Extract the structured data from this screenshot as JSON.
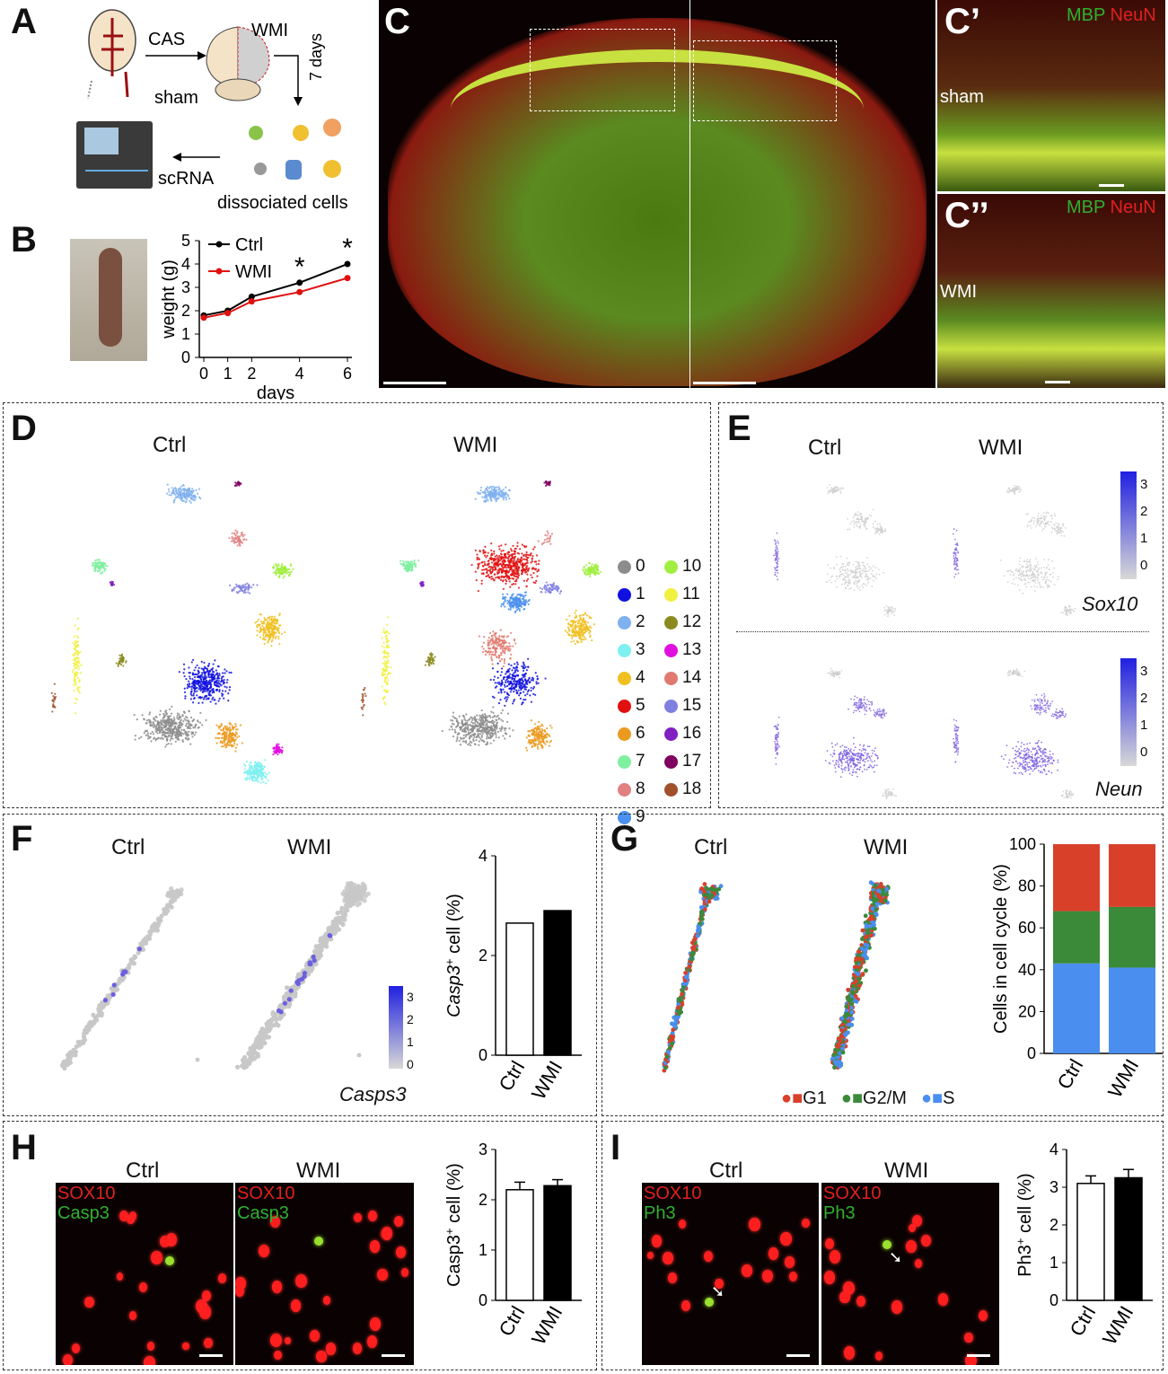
{
  "panels": {
    "A": {
      "label": "A",
      "cas": "CAS",
      "wmi": "WMI",
      "sham": "sham",
      "days": "7 days",
      "scrna": "scRNA",
      "dissociated": "dissociated cells"
    },
    "B": {
      "label": "B"
    },
    "C": {
      "label": "C",
      "c1_label": "C’",
      "c2_label": "C’’",
      "c1_tag": "sham",
      "c2_tag": "WMI",
      "stain_mbp": "MBP",
      "stain_neun": "NeuN"
    },
    "D": {
      "label": "D",
      "ctrl": "Ctrl",
      "wmi": "WMI",
      "clusters": [
        {
          "id": "0",
          "color": "#8c8c8c"
        },
        {
          "id": "1",
          "color": "#1010e0"
        },
        {
          "id": "2",
          "color": "#7fb0ef"
        },
        {
          "id": "3",
          "color": "#7ef0f0"
        },
        {
          "id": "4",
          "color": "#f0c020"
        },
        {
          "id": "5",
          "color": "#e01010"
        },
        {
          "id": "6",
          "color": "#eb9a20"
        },
        {
          "id": "7",
          "color": "#7ff0a0"
        },
        {
          "id": "8",
          "color": "#e08080"
        },
        {
          "id": "9",
          "color": "#4a90ef"
        },
        {
          "id": "10",
          "color": "#a0ef40"
        },
        {
          "id": "11",
          "color": "#f0f040"
        },
        {
          "id": "12",
          "color": "#8a8a20"
        },
        {
          "id": "13",
          "color": "#e010e0"
        },
        {
          "id": "14",
          "color": "#e07a70"
        },
        {
          "id": "15",
          "color": "#8080e0"
        },
        {
          "id": "16",
          "color": "#8020c0"
        },
        {
          "id": "17",
          "color": "#800060"
        },
        {
          "id": "18",
          "color": "#a0502a"
        }
      ]
    },
    "E": {
      "label": "E",
      "ctrl": "Ctrl",
      "wmi": "WMI",
      "gene1": "Sox10",
      "gene2": "Neun",
      "scale": [
        "3",
        "2",
        "1",
        "0"
      ]
    },
    "F": {
      "label": "F",
      "ctrl": "Ctrl",
      "wmi": "WMI",
      "gene": "Casps3",
      "scale": [
        "3",
        "2",
        "1",
        "0"
      ]
    },
    "G": {
      "label": "G",
      "ctrl": "Ctrl",
      "wmi": "WMI",
      "legend": [
        "G1",
        "G2/M",
        "S"
      ]
    },
    "H": {
      "label": "H",
      "ctrl": "Ctrl",
      "wmi": "WMI",
      "stain1": "SOX10",
      "stain2": "Casp3"
    },
    "I": {
      "label": "I",
      "ctrl": "Ctrl",
      "wmi": "WMI",
      "stain1": "SOX10",
      "stain2": "Ph3"
    }
  },
  "chart_data": [
    {
      "panel": "B",
      "type": "line",
      "xlabel": "days",
      "ylabel": "weight (g)",
      "x": [
        0,
        1,
        2,
        4,
        6
      ],
      "ylim": [
        0,
        5
      ],
      "series": [
        {
          "name": "Ctrl",
          "color": "#000000",
          "values": [
            1.8,
            2.0,
            2.6,
            3.2,
            4.0
          ]
        },
        {
          "name": "WMI",
          "color": "#e01010",
          "values": [
            1.7,
            1.9,
            2.4,
            2.8,
            3.4
          ]
        }
      ],
      "annotations": [
        "*",
        "*"
      ]
    },
    {
      "panel": "F",
      "type": "bar",
      "ylabel": "Casp3+ cell (%)",
      "categories": [
        "Ctrl",
        "WMI"
      ],
      "values": [
        2.65,
        2.9
      ],
      "ylim": [
        0,
        4
      ]
    },
    {
      "panel": "G",
      "type": "bar",
      "stacked": true,
      "ylabel": "Cells in cell cycle (%)",
      "categories": [
        "Ctrl",
        "WMI"
      ],
      "ylim": [
        0,
        100
      ],
      "series": [
        {
          "name": "S",
          "color": "#4a8ef0",
          "values": [
            43,
            41
          ]
        },
        {
          "name": "G2/M",
          "color": "#3a8a3a",
          "values": [
            25,
            29
          ]
        },
        {
          "name": "G1",
          "color": "#d9402a",
          "values": [
            32,
            30
          ]
        }
      ]
    },
    {
      "panel": "H",
      "type": "bar",
      "ylabel": "Casp3+ cell (%)",
      "categories": [
        "Ctrl",
        "WMI"
      ],
      "values": [
        2.2,
        2.28
      ],
      "errors": [
        0.15,
        0.12
      ],
      "ylim": [
        0,
        3
      ]
    },
    {
      "panel": "I",
      "type": "bar",
      "ylabel": "Ph3+ cell (%)",
      "categories": [
        "Ctrl",
        "WMI"
      ],
      "values": [
        3.1,
        3.25
      ],
      "errors": [
        0.2,
        0.22
      ],
      "ylim": [
        0,
        4
      ]
    }
  ]
}
